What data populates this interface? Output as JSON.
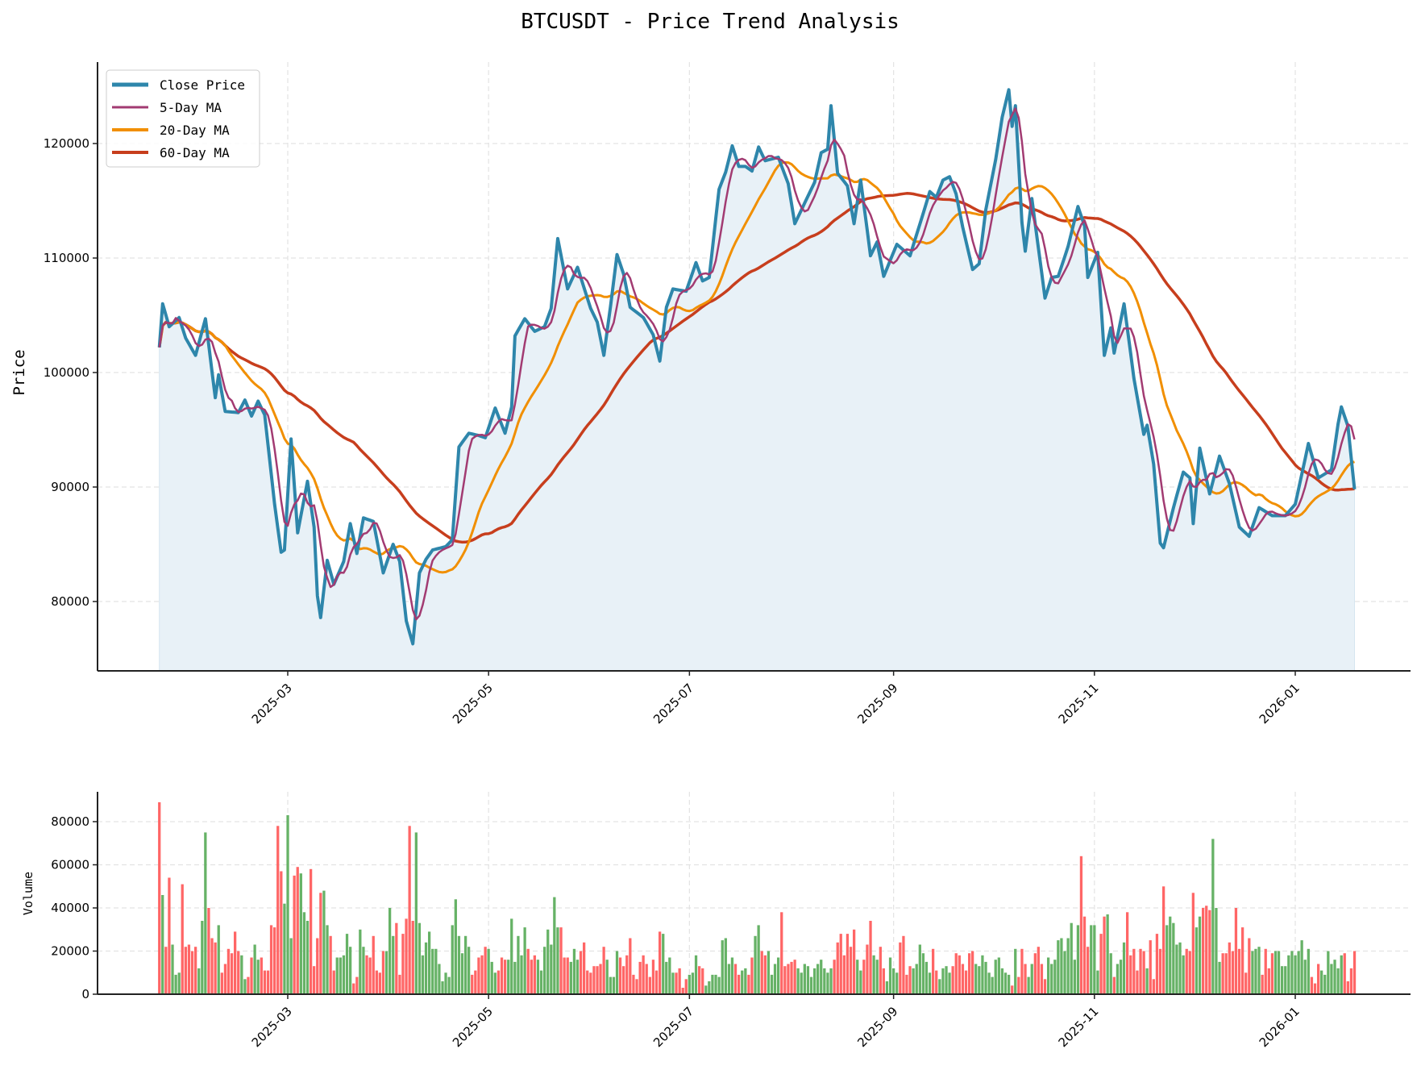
{
  "chart_data": [
    {
      "type": "line",
      "title": "BTCUSDT - Price Trend Analysis",
      "xlabel": "",
      "ylabel": "Price",
      "ylim": [
        74000,
        127000
      ],
      "yticks": [
        80000,
        90000,
        100000,
        110000,
        120000
      ],
      "xticks": [
        "2025-03",
        "2025-05",
        "2025-07",
        "2025-09",
        "2025-11",
        "2026-01"
      ],
      "xtick_dates": [
        "2025-03-01",
        "2025-05-01",
        "2025-07-01",
        "2025-09-01",
        "2025-11-01",
        "2026-01-01"
      ],
      "x_range": [
        "2025-01-21",
        "2026-01-19"
      ],
      "grid": true,
      "legend_position": "upper left",
      "legend": [
        "Close Price",
        "5-Day MA",
        "20-Day MA",
        "60-Day MA"
      ],
      "colors": {
        "close": "#2e86ab",
        "ma5": "#a23b72",
        "ma20": "#f18f01",
        "ma60": "#c73e1d",
        "fill": "#e8f1f7"
      },
      "close_keypoints": [
        [
          "2025-01-21",
          102200
        ],
        [
          "2025-01-22",
          106000
        ],
        [
          "2025-01-24",
          104000
        ],
        [
          "2025-01-27",
          104800
        ],
        [
          "2025-01-29",
          103000
        ],
        [
          "2025-02-01",
          101500
        ],
        [
          "2025-02-04",
          104700
        ],
        [
          "2025-02-07",
          97800
        ],
        [
          "2025-02-08",
          99800
        ],
        [
          "2025-02-10",
          96600
        ],
        [
          "2025-02-14",
          96500
        ],
        [
          "2025-02-16",
          97600
        ],
        [
          "2025-02-18",
          96200
        ],
        [
          "2025-02-20",
          97500
        ],
        [
          "2025-02-22",
          96300
        ],
        [
          "2025-02-25",
          88500
        ],
        [
          "2025-02-27",
          84300
        ],
        [
          "2025-02-28",
          84500
        ],
        [
          "2025-03-02",
          94200
        ],
        [
          "2025-03-04",
          86000
        ],
        [
          "2025-03-07",
          90500
        ],
        [
          "2025-03-09",
          86500
        ],
        [
          "2025-03-10",
          80500
        ],
        [
          "2025-03-11",
          78600
        ],
        [
          "2025-03-13",
          83600
        ],
        [
          "2025-03-15",
          81500
        ],
        [
          "2025-03-18",
          83500
        ],
        [
          "2025-03-20",
          86800
        ],
        [
          "2025-03-22",
          84200
        ],
        [
          "2025-03-24",
          87300
        ],
        [
          "2025-03-27",
          87000
        ],
        [
          "2025-03-30",
          82500
        ],
        [
          "2025-04-02",
          85000
        ],
        [
          "2025-04-04",
          83500
        ],
        [
          "2025-04-06",
          78300
        ],
        [
          "2025-04-08",
          76300
        ],
        [
          "2025-04-10",
          82500
        ],
        [
          "2025-04-12",
          83700
        ],
        [
          "2025-04-14",
          84500
        ],
        [
          "2025-04-18",
          84800
        ],
        [
          "2025-04-20",
          85400
        ],
        [
          "2025-04-22",
          93500
        ],
        [
          "2025-04-25",
          94700
        ],
        [
          "2025-04-28",
          94500
        ],
        [
          "2025-04-30",
          94300
        ],
        [
          "2025-05-03",
          96900
        ],
        [
          "2025-05-06",
          94700
        ],
        [
          "2025-05-08",
          97000
        ],
        [
          "2025-05-09",
          103200
        ],
        [
          "2025-05-12",
          104700
        ],
        [
          "2025-05-15",
          103600
        ],
        [
          "2025-05-18",
          104000
        ],
        [
          "2025-05-20",
          105600
        ],
        [
          "2025-05-22",
          111700
        ],
        [
          "2025-05-25",
          107300
        ],
        [
          "2025-05-28",
          109200
        ],
        [
          "2025-06-01",
          105600
        ],
        [
          "2025-06-03",
          104400
        ],
        [
          "2025-06-05",
          101500
        ],
        [
          "2025-06-07",
          105700
        ],
        [
          "2025-06-09",
          110300
        ],
        [
          "2025-06-11",
          108600
        ],
        [
          "2025-06-13",
          105700
        ],
        [
          "2025-06-17",
          104800
        ],
        [
          "2025-06-20",
          103300
        ],
        [
          "2025-06-22",
          101000
        ],
        [
          "2025-06-24",
          105700
        ],
        [
          "2025-06-26",
          107300
        ],
        [
          "2025-06-30",
          107100
        ],
        [
          "2025-07-03",
          109600
        ],
        [
          "2025-07-05",
          108000
        ],
        [
          "2025-07-07",
          108300
        ],
        [
          "2025-07-10",
          116000
        ],
        [
          "2025-07-12",
          117500
        ],
        [
          "2025-07-14",
          119800
        ],
        [
          "2025-07-16",
          118000
        ],
        [
          "2025-07-18",
          118000
        ],
        [
          "2025-07-20",
          117600
        ],
        [
          "2025-07-22",
          119700
        ],
        [
          "2025-07-24",
          118500
        ],
        [
          "2025-07-28",
          118800
        ],
        [
          "2025-07-31",
          116500
        ],
        [
          "2025-08-02",
          113000
        ],
        [
          "2025-08-04",
          114200
        ],
        [
          "2025-08-08",
          116600
        ],
        [
          "2025-08-10",
          119200
        ],
        [
          "2025-08-12",
          119500
        ],
        [
          "2025-08-13",
          123300
        ],
        [
          "2025-08-15",
          117400
        ],
        [
          "2025-08-18",
          116300
        ],
        [
          "2025-08-20",
          113000
        ],
        [
          "2025-08-22",
          116800
        ],
        [
          "2025-08-25",
          110200
        ],
        [
          "2025-08-27",
          111400
        ],
        [
          "2025-08-29",
          108400
        ],
        [
          "2025-09-02",
          111200
        ],
        [
          "2025-09-06",
          110200
        ],
        [
          "2025-09-10",
          113900
        ],
        [
          "2025-09-12",
          115800
        ],
        [
          "2025-09-14",
          115300
        ],
        [
          "2025-09-16",
          116800
        ],
        [
          "2025-09-18",
          117100
        ],
        [
          "2025-09-20",
          115600
        ],
        [
          "2025-09-22",
          112700
        ],
        [
          "2025-09-25",
          109000
        ],
        [
          "2025-09-27",
          109500
        ],
        [
          "2025-09-29",
          114200
        ],
        [
          "2025-10-02",
          118600
        ],
        [
          "2025-10-04",
          122300
        ],
        [
          "2025-10-06",
          124700
        ],
        [
          "2025-10-07",
          121500
        ],
        [
          "2025-10-08",
          123300
        ],
        [
          "2025-10-10",
          113100
        ],
        [
          "2025-10-11",
          110600
        ],
        [
          "2025-10-13",
          115200
        ],
        [
          "2025-10-14",
          113000
        ],
        [
          "2025-10-17",
          106500
        ],
        [
          "2025-10-19",
          108300
        ],
        [
          "2025-10-21",
          108400
        ],
        [
          "2025-10-24",
          111000
        ],
        [
          "2025-10-27",
          114500
        ],
        [
          "2025-10-29",
          112800
        ],
        [
          "2025-10-30",
          108300
        ],
        [
          "2025-11-02",
          110500
        ],
        [
          "2025-11-04",
          101500
        ],
        [
          "2025-11-06",
          103900
        ],
        [
          "2025-11-07",
          101700
        ],
        [
          "2025-11-10",
          106000
        ],
        [
          "2025-11-13",
          99500
        ],
        [
          "2025-11-16",
          94600
        ],
        [
          "2025-11-17",
          95400
        ],
        [
          "2025-11-19",
          92000
        ],
        [
          "2025-11-21",
          85100
        ],
        [
          "2025-11-22",
          84700
        ],
        [
          "2025-11-25",
          88200
        ],
        [
          "2025-11-28",
          91300
        ],
        [
          "2025-11-30",
          90800
        ],
        [
          "2025-12-01",
          86800
        ],
        [
          "2025-12-03",
          93400
        ],
        [
          "2025-12-06",
          89400
        ],
        [
          "2025-12-09",
          92700
        ],
        [
          "2025-12-12",
          90300
        ],
        [
          "2025-12-15",
          86500
        ],
        [
          "2025-12-18",
          85700
        ],
        [
          "2025-12-21",
          88200
        ],
        [
          "2025-12-25",
          87500
        ],
        [
          "2025-12-29",
          87500
        ],
        [
          "2026-01-01",
          88500
        ],
        [
          "2026-01-05",
          93800
        ],
        [
          "2026-01-08",
          90800
        ],
        [
          "2026-01-12",
          91500
        ],
        [
          "2026-01-14",
          95500
        ],
        [
          "2026-01-15",
          97000
        ],
        [
          "2026-01-17",
          95300
        ],
        [
          "2026-01-19",
          89800
        ]
      ]
    },
    {
      "type": "bar",
      "title": "",
      "xlabel": "",
      "ylabel": "Volume",
      "ylim": [
        0,
        93000
      ],
      "yticks": [
        0,
        20000,
        40000,
        60000,
        80000
      ],
      "xticks": [
        "2025-03",
        "2025-05",
        "2025-07",
        "2025-09",
        "2025-11",
        "2026-01"
      ],
      "grid": true,
      "colors": {
        "up": "#66b266",
        "down": "#ff6666"
      },
      "volume_daily": [
        89000,
        46000,
        22000,
        54000,
        23000,
        9000,
        10000,
        51000,
        22000,
        23000,
        20000,
        22000,
        12000,
        34000,
        75000,
        40000,
        26000,
        24000,
        32000,
        10000,
        14000,
        21000,
        19000,
        29000,
        20000,
        18000,
        7000,
        8000,
        17000,
        23000,
        16000,
        17000,
        11000,
        11000,
        32000,
        31000,
        78000,
        57000,
        42000,
        83000,
        26000,
        55000,
        59000,
        56000,
        38000,
        34000,
        58000,
        13000,
        26000,
        47000,
        48000,
        32000,
        27000,
        11000,
        17000,
        17000,
        18000,
        28000,
        22000,
        5000,
        8000,
        30000,
        22000,
        18000,
        17000,
        27000,
        11000,
        10000,
        20000,
        20000,
        40000,
        27000,
        33000,
        9000,
        28000,
        35000,
        78000,
        34000,
        75000,
        33000,
        18000,
        24000,
        29000,
        21000,
        21000,
        14000,
        6000,
        10000,
        8000,
        32000,
        44000,
        27000,
        19000,
        27000,
        22000,
        9000,
        11000,
        17000,
        18000,
        22000,
        21000,
        15000,
        10000,
        11000,
        17000,
        16000,
        16000,
        35000,
        15000,
        27000,
        18000,
        31000,
        21000,
        16000,
        18000,
        16000,
        11000,
        22000,
        30000,
        23000,
        45000,
        31000,
        31000,
        17000,
        17000,
        15000,
        21000,
        16000,
        20000,
        24000,
        11000,
        10000,
        13000,
        13000,
        14000,
        22000,
        16000,
        8000,
        8000,
        20000,
        17000,
        13000,
        18000,
        26000,
        9000,
        7000,
        15000,
        18000,
        14000,
        8000,
        16000,
        11000,
        29000,
        28000,
        15000,
        17000,
        10000,
        10000,
        12000,
        3000,
        7000,
        9000,
        10000,
        18000,
        13000,
        12000,
        4000,
        6000,
        9000,
        9000,
        8000,
        25000,
        26000,
        14000,
        17000,
        14000,
        9000,
        11000,
        12000,
        9000,
        17000,
        27000,
        32000,
        20000,
        18000,
        20000,
        9000,
        14000,
        17000,
        38000,
        13000,
        14000,
        15000,
        16000,
        12000,
        10000,
        14000,
        13000,
        8000,
        12000,
        14000,
        16000,
        12000,
        10000,
        12000,
        16000,
        24000,
        28000,
        18000,
        28000,
        22000,
        30000,
        16000,
        11000,
        16000,
        23000,
        34000,
        18000,
        16000,
        22000,
        12000,
        6000,
        17000,
        12000,
        10000,
        24000,
        27000,
        9000,
        13000,
        12000,
        14000,
        23000,
        19000,
        15000,
        10000,
        21000,
        11000,
        7000,
        12000,
        13000,
        10000,
        13000,
        19000,
        18000,
        14000,
        11000,
        19000,
        20000,
        14000,
        13000,
        18000,
        15000,
        10000,
        8000,
        16000,
        17000,
        12000,
        10000,
        9000,
        4000,
        21000,
        8000,
        21000,
        14000,
        8000,
        14000,
        19000,
        22000,
        14000,
        7000,
        17000,
        14000,
        16000,
        25000,
        26000,
        20000,
        26000,
        33000,
        16000,
        32000,
        64000,
        36000,
        22000,
        32000,
        32000,
        11000,
        28000,
        36000,
        37000,
        19000,
        8000,
        14000,
        16000,
        24000,
        38000,
        18000,
        21000,
        11000,
        21000,
        20000,
        12000,
        25000,
        7000,
        28000,
        21000,
        50000,
        32000,
        36000,
        33000,
        23000,
        24000,
        18000,
        21000,
        20000,
        47000,
        31000,
        36000,
        40000,
        41000,
        39000,
        72000,
        40000,
        15000,
        19000,
        19000,
        24000,
        20000,
        40000,
        21000,
        31000,
        10000,
        26000,
        20000,
        21000,
        22000,
        9000,
        21000,
        12000,
        19000,
        20000,
        20000,
        13000,
        13000,
        18000,
        20000,
        18000,
        20000,
        25000,
        16000,
        21000,
        8000,
        5000,
        14000,
        11000,
        9000,
        20000,
        14000,
        16000,
        12000,
        18000,
        19000,
        6000,
        12000,
        20000,
        11000,
        15000,
        12000,
        6000,
        10000,
        12000,
        16000,
        17000,
        14000,
        9000,
        20000,
        14000,
        19000,
        16000,
        14000,
        16000,
        3000,
        8000,
        11000,
        23000,
        23000,
        21000,
        11000,
        5000,
        8000,
        14000,
        18000
      ]
    }
  ],
  "price_axis": {
    "ylabel": "Price",
    "ytick_labels": [
      "80000",
      "90000",
      "100000",
      "110000",
      "120000"
    ]
  },
  "volume_axis": {
    "ylabel": "Volume",
    "ytick_labels": [
      "0",
      "20000",
      "40000",
      "60000",
      "80000"
    ]
  },
  "xtick_labels": [
    "2025-03",
    "2025-05",
    "2025-07",
    "2025-09",
    "2025-11",
    "2026-01"
  ],
  "title": "BTCUSDT - Price Trend Analysis",
  "legend": {
    "items": [
      {
        "label": "Close Price",
        "color": "#2e86ab",
        "width": 4
      },
      {
        "label": "5-Day MA",
        "color": "#a23b72",
        "width": 2.5
      },
      {
        "label": "20-Day MA",
        "color": "#f18f01",
        "width": 3
      },
      {
        "label": "60-Day MA",
        "color": "#c73e1d",
        "width": 3.5
      }
    ]
  }
}
